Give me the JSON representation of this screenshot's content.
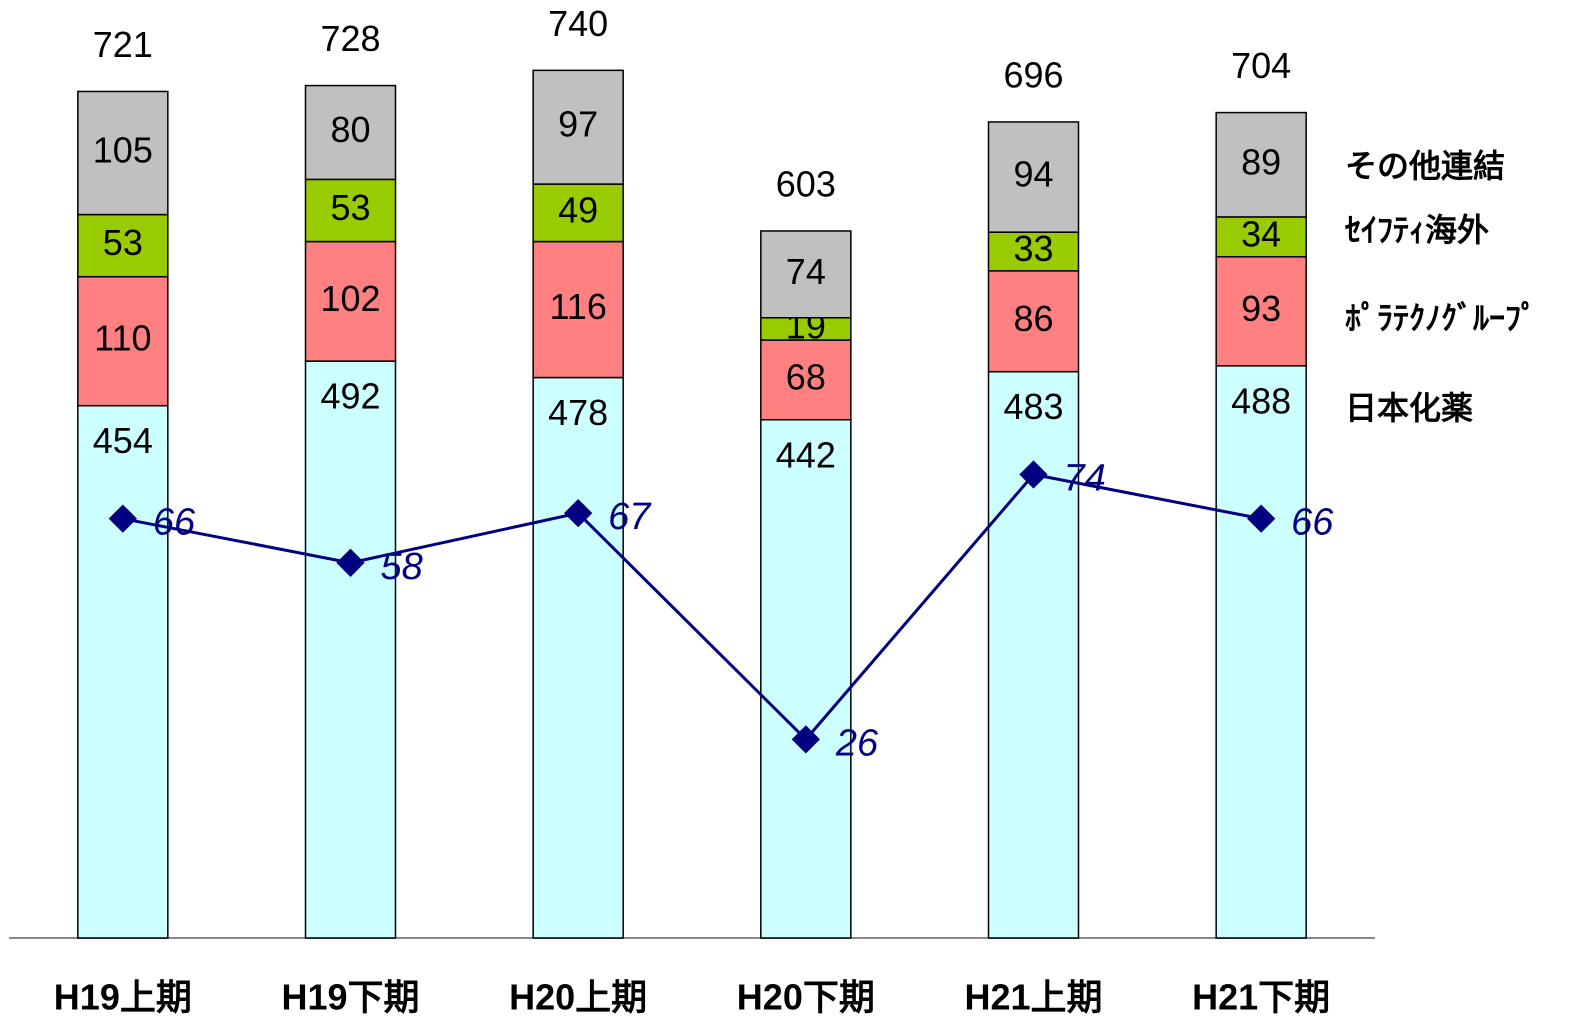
{
  "chart_data": {
    "type": "bar",
    "categories": [
      "H19上期",
      "H19下期",
      "H20上期",
      "H20下期",
      "H21上期",
      "H21下期"
    ],
    "series": [
      {
        "name": "日本化薬",
        "color": "#ccffff",
        "values": [
          454,
          492,
          478,
          442,
          483,
          488
        ]
      },
      {
        "name": "ﾎﾟﾗﾃｸﾉｸﾞﾙｰﾌﾟ",
        "color": "#ff8080",
        "values": [
          110,
          102,
          116,
          68,
          86,
          93
        ]
      },
      {
        "name": "ｾｲﾌﾃｨ海外",
        "color": "#99cc00",
        "values": [
          53,
          53,
          49,
          19,
          33,
          34
        ]
      },
      {
        "name": "その他連結",
        "color": "#c0c0c0",
        "values": [
          105,
          80,
          97,
          74,
          94,
          89
        ]
      }
    ],
    "totals": [
      721,
      728,
      740,
      603,
      696,
      704
    ],
    "line": {
      "type": "line",
      "color": "#000080",
      "axis": "y2",
      "values": [
        66,
        58,
        67,
        26,
        74,
        66
      ]
    },
    "ylim": [
      0,
      800
    ],
    "y2lim": [
      -10,
      160
    ]
  }
}
